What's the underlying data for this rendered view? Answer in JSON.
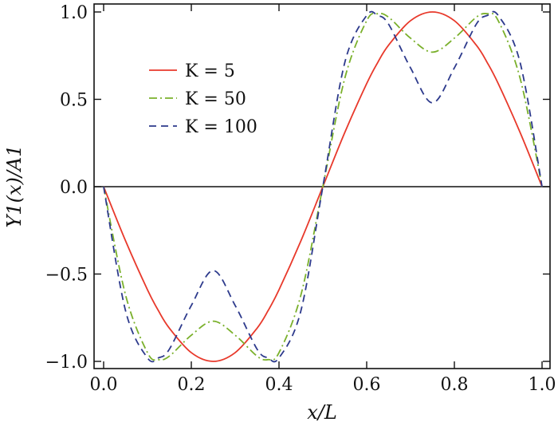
{
  "chart_data": {
    "type": "line",
    "xlabel": "x/L",
    "ylabel": "Y1(x)/A1",
    "xlim": [
      0.0,
      1.0
    ],
    "ylim": [
      -1.0,
      1.0
    ],
    "xticks": [
      "0.0",
      "0.2",
      "0.4",
      "0.6",
      "0.8",
      "1.0"
    ],
    "yticks": [
      "−1.0",
      "−0.5",
      "0.0",
      "0.5",
      "1.0"
    ],
    "xtick_values": [
      0.0,
      0.2,
      0.4,
      0.6,
      0.8,
      1.0
    ],
    "ytick_values": [
      -1.0,
      -0.5,
      0.0,
      0.5,
      1.0
    ],
    "grid": false,
    "legend_position": "upper-left",
    "zero_line": true,
    "x": [
      0.0,
      0.05,
      0.1,
      0.125,
      0.15,
      0.2,
      0.25,
      0.3,
      0.35,
      0.375,
      0.4,
      0.45,
      0.5,
      0.55,
      0.6,
      0.625,
      0.65,
      0.7,
      0.75,
      0.8,
      0.85,
      0.875,
      0.9,
      0.95,
      1.0
    ],
    "series": [
      {
        "name": "K = 5",
        "color": "#e8392b",
        "dash": "solid",
        "values": [
          0.0,
          -0.31,
          -0.59,
          -0.71,
          -0.81,
          -0.95,
          -1.0,
          -0.95,
          -0.81,
          -0.71,
          -0.59,
          -0.31,
          0.0,
          0.31,
          0.59,
          0.71,
          0.81,
          0.95,
          1.0,
          0.95,
          0.81,
          0.71,
          0.59,
          0.31,
          0.0
        ]
      },
      {
        "name": "K = 50",
        "color": "#7ab02b",
        "dash": "dashdot",
        "values": [
          0.0,
          -0.62,
          -0.95,
          -0.99,
          -0.97,
          -0.85,
          -0.77,
          -0.85,
          -0.97,
          -0.99,
          -0.95,
          -0.62,
          0.0,
          0.62,
          0.95,
          0.99,
          0.97,
          0.85,
          0.77,
          0.85,
          0.97,
          0.99,
          0.95,
          0.62,
          0.0
        ]
      },
      {
        "name": "K = 100",
        "color": "#2d3a8c",
        "dash": "dashed",
        "values": [
          0.0,
          -0.71,
          -0.98,
          -0.98,
          -0.93,
          -0.68,
          -0.48,
          -0.68,
          -0.93,
          -0.98,
          -0.98,
          -0.71,
          0.0,
          0.71,
          0.98,
          0.98,
          0.93,
          0.68,
          0.48,
          0.68,
          0.93,
          0.98,
          0.98,
          0.71,
          0.0
        ]
      }
    ]
  }
}
